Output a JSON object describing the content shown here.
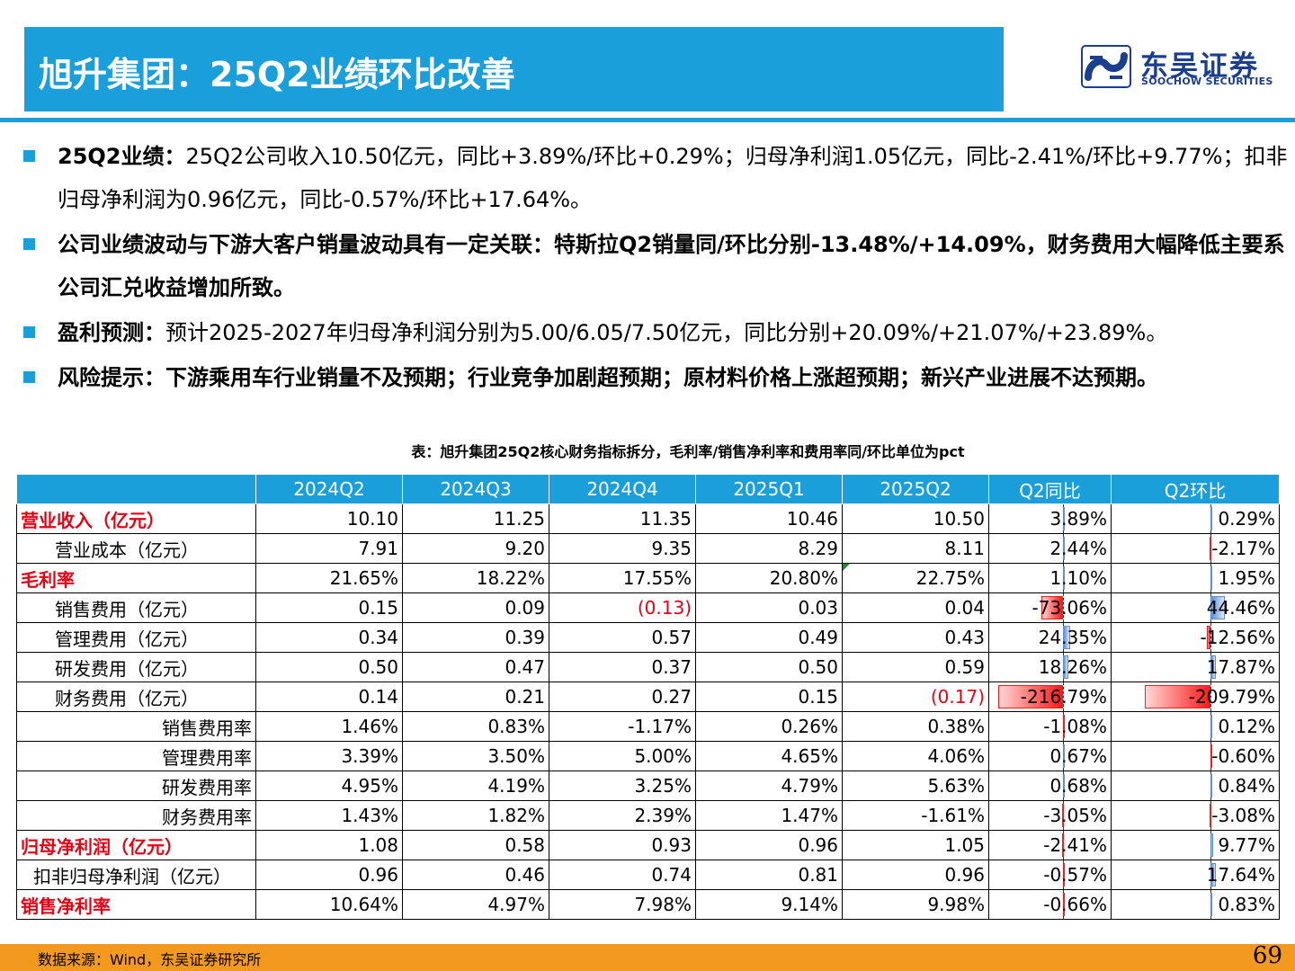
{
  "header": {
    "title": "旭升集团：25Q2业绩环比改善",
    "logo_cn": "东吴证券",
    "logo_en": "SOOCHOW SECURITIES"
  },
  "bullets": [
    {
      "lead": "25Q2业绩：",
      "text": "25Q2公司收入10.50亿元，同比+3.89%/环比+0.29%；归母净利润1.05亿元，同比-2.41%/环比+9.77%；扣非归母净利润为0.96亿元，同比-0.57%/环比+17.64%。"
    },
    {
      "lead": "",
      "text": "公司业绩波动与下游大客户销量波动具有一定关联：特斯拉Q2销量同/环比分别-13.48%/+14.09%，财务费用大幅降低主要系公司汇兑收益增加所致。"
    },
    {
      "lead": "盈利预测：",
      "text": "预计2025-2027年归母净利润分别为5.00/6.05/7.50亿元，同比分别+20.09%/+21.07%/+23.89%。"
    },
    {
      "lead": "风险提示：",
      "text": "下游乘用车行业销量不及预期；行业竞争加剧超预期；原材料价格上涨超预期；新兴产业进展不达预期。"
    }
  ],
  "table": {
    "caption": "表：旭升集团25Q2核心财务指标拆分，毛利率/销售净利率和费用率同/环比单位为pct",
    "headers": [
      "",
      "2024Q2",
      "2024Q3",
      "2024Q4",
      "2025Q1",
      "2025Q2",
      "Q2同比",
      "Q2环比"
    ],
    "rows": [
      {
        "label": "营业收入（亿元）",
        "style": "red",
        "cells": [
          "10.10",
          "11.25",
          "11.35",
          "10.46",
          "10.50"
        ],
        "yoy": "3.89%",
        "yoy_v": 3.89,
        "qoq": "0.29%",
        "qoq_v": 0.29
      },
      {
        "label": "营业成本（亿元）",
        "style": "ind1",
        "cells": [
          "7.91",
          "9.20",
          "9.35",
          "8.29",
          "8.11"
        ],
        "yoy": "2.44%",
        "yoy_v": 2.44,
        "qoq": "-2.17%",
        "qoq_v": -2.17
      },
      {
        "label": "毛利率",
        "style": "red",
        "cells": [
          "21.65%",
          "18.22%",
          "17.55%",
          "20.80%",
          "22.75%"
        ],
        "yoy": "1.10%",
        "yoy_v": 1.1,
        "qoq": "1.95%",
        "qoq_v": 1.95
      },
      {
        "label": "销售费用（亿元）",
        "style": "ind1",
        "cells": [
          "0.15",
          "0.09",
          "(0.13)",
          "0.03",
          "0.04"
        ],
        "yoy": "-73.06%",
        "yoy_v": -73.06,
        "qoq": "44.46%",
        "qoq_v": 44.46
      },
      {
        "label": "管理费用（亿元）",
        "style": "ind1",
        "cells": [
          "0.34",
          "0.39",
          "0.57",
          "0.49",
          "0.43"
        ],
        "yoy": "24.35%",
        "yoy_v": 24.35,
        "qoq": "-12.56%",
        "qoq_v": -12.56
      },
      {
        "label": "研发费用（亿元）",
        "style": "ind1",
        "cells": [
          "0.50",
          "0.47",
          "0.37",
          "0.50",
          "0.59"
        ],
        "yoy": "18.26%",
        "yoy_v": 18.26,
        "qoq": "17.87%",
        "qoq_v": 17.87
      },
      {
        "label": "财务费用（亿元）",
        "style": "ind1",
        "cells": [
          "0.14",
          "0.21",
          "0.27",
          "0.15",
          "(0.17)"
        ],
        "yoy": "-216.79%",
        "yoy_v": -216.79,
        "qoq": "-209.79%",
        "qoq_v": -209.79
      },
      {
        "label": "销售费用率",
        "style": "ind2",
        "cells": [
          "1.46%",
          "0.83%",
          "-1.17%",
          "0.26%",
          "0.38%"
        ],
        "yoy": "-1.08%",
        "yoy_v": -1.08,
        "qoq": "0.12%",
        "qoq_v": 0.12
      },
      {
        "label": "管理费用率",
        "style": "ind2",
        "cells": [
          "3.39%",
          "3.50%",
          "5.00%",
          "4.65%",
          "4.06%"
        ],
        "yoy": "0.67%",
        "yoy_v": 0.67,
        "qoq": "-0.60%",
        "qoq_v": -0.6
      },
      {
        "label": "研发费用率",
        "style": "ind2",
        "cells": [
          "4.95%",
          "4.19%",
          "3.25%",
          "4.79%",
          "5.63%"
        ],
        "yoy": "0.68%",
        "yoy_v": 0.68,
        "qoq": "0.84%",
        "qoq_v": 0.84
      },
      {
        "label": "财务费用率",
        "style": "ind2",
        "cells": [
          "1.43%",
          "1.82%",
          "2.39%",
          "1.47%",
          "-1.61%"
        ],
        "yoy": "-3.05%",
        "yoy_v": -3.05,
        "qoq": "-3.08%",
        "qoq_v": -3.08
      },
      {
        "label": "归母净利润（亿元）",
        "style": "red",
        "cells": [
          "1.08",
          "0.58",
          "0.93",
          "0.96",
          "1.05"
        ],
        "yoy": "-2.41%",
        "yoy_v": -2.41,
        "qoq": "9.77%",
        "qoq_v": 9.77
      },
      {
        "label": "扣非归母净利润（亿元）",
        "style": "ind0",
        "cells": [
          "0.96",
          "0.46",
          "0.74",
          "0.81",
          "0.96"
        ],
        "yoy": "-0.57%",
        "yoy_v": -0.57,
        "qoq": "17.64%",
        "qoq_v": 17.64
      },
      {
        "label": "销售净利率",
        "style": "red",
        "cells": [
          "10.64%",
          "4.97%",
          "7.98%",
          "9.14%",
          "9.98%"
        ],
        "yoy": "-0.66%",
        "yoy_v": -0.66,
        "qoq": "0.83%",
        "qoq_v": 0.83
      }
    ]
  },
  "footer": {
    "source": "数据来源：Wind，东吴证券研究所",
    "page": "69"
  },
  "colors": {
    "accent": "#1a9fdb",
    "footer": "#f39a1e",
    "negative": "#e60012"
  }
}
